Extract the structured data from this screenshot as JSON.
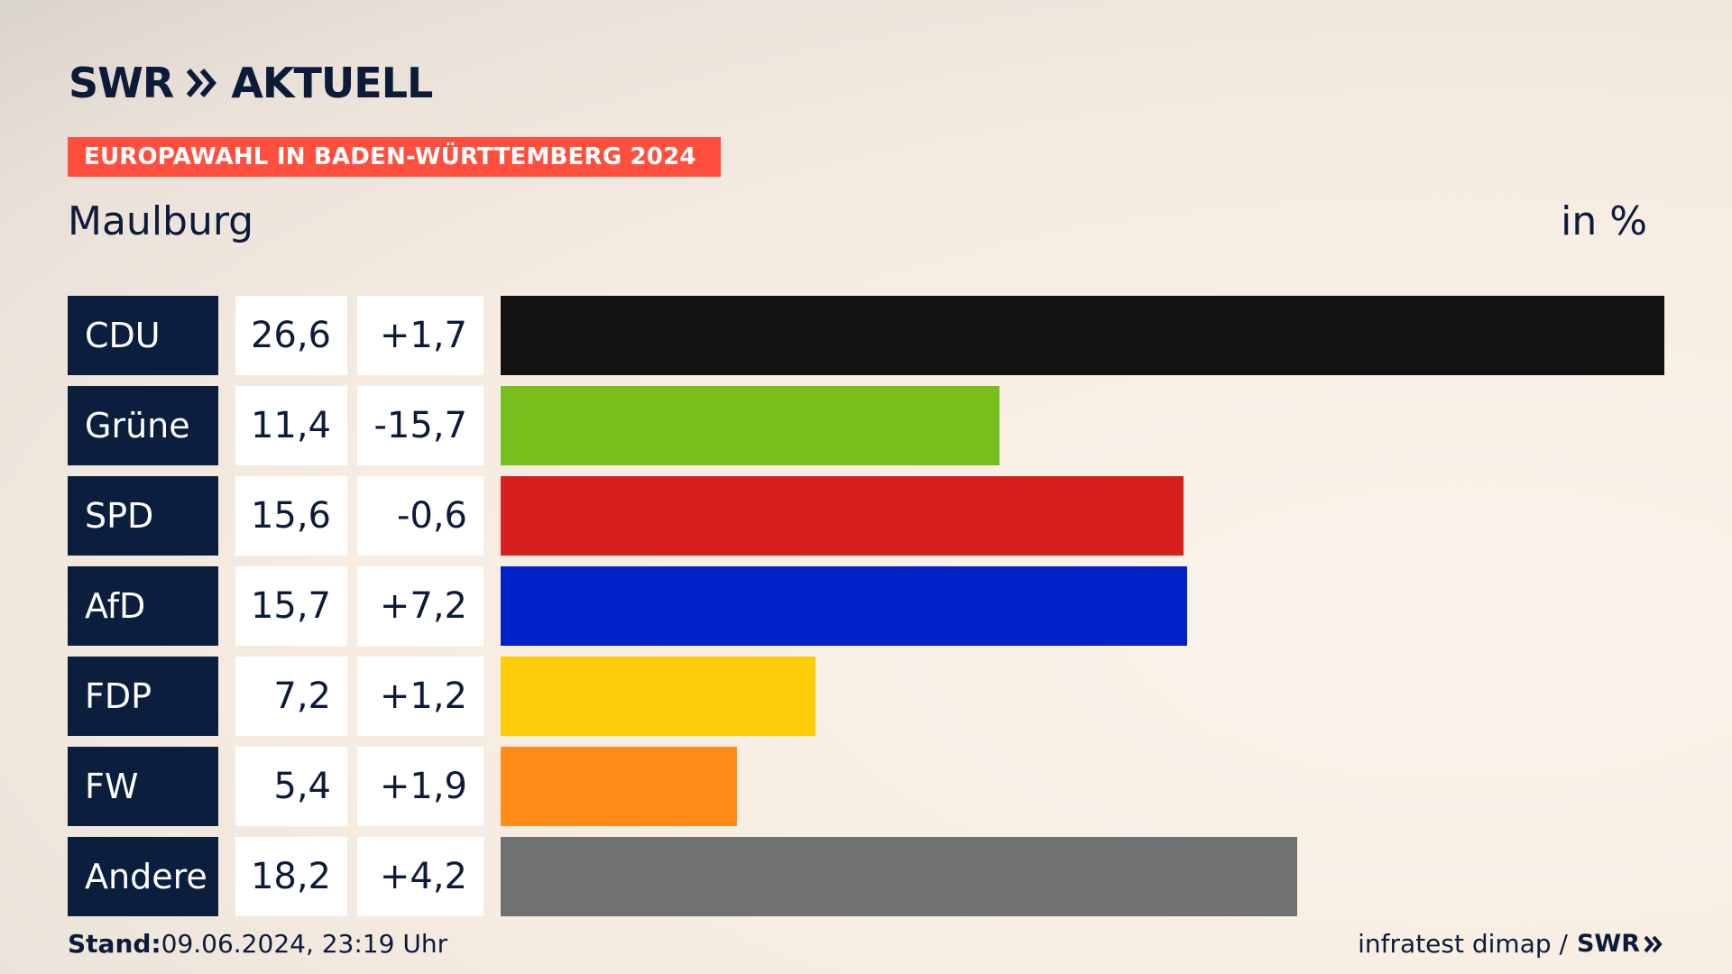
{
  "header": {
    "logo_text": "SWR",
    "logo_suffix": "AKTUELL",
    "banner": "EUROPAWAHL IN BADEN-WÜRTTEMBERG 2024",
    "place": "Maulburg",
    "unit": "in %"
  },
  "footer": {
    "stand_label": "Stand:",
    "stand_value": "09.06.2024, 23:19 Uhr",
    "source": "infratest dimap /",
    "source_logo": "SWR"
  },
  "colors": {
    "CDU": "#121212",
    "Grüne": "#78be1c",
    "SPD": "#d71f1d",
    "AfD": "#0021c8",
    "FDP": "#ffcc09",
    "FW": "#ff8c16",
    "Andere": "#707173"
  },
  "chart_data": {
    "type": "bar",
    "orientation": "horizontal",
    "title": "EUROPAWAHL IN BADEN-WÜRTTEMBERG 2024",
    "subtitle": "Maulburg",
    "unit": "in %",
    "categories": [
      "CDU",
      "Grüne",
      "SPD",
      "AfD",
      "FDP",
      "FW",
      "Andere"
    ],
    "values": [
      26.6,
      11.4,
      15.6,
      15.7,
      7.2,
      5.4,
      18.2
    ],
    "value_labels": [
      "26,6",
      "11,4",
      "15,6",
      "15,7",
      "7,2",
      "5,4",
      "18,2"
    ],
    "diff_labels": [
      "+1,7",
      "-15,7",
      "-0,6",
      "+7,2",
      "+1,2",
      "+1,9",
      "+4,2"
    ],
    "diffs": [
      1.7,
      -15.7,
      -0.6,
      7.2,
      1.2,
      1.9,
      4.2
    ],
    "xlim": [
      0,
      26.6
    ],
    "grid": false,
    "legend": "none"
  }
}
